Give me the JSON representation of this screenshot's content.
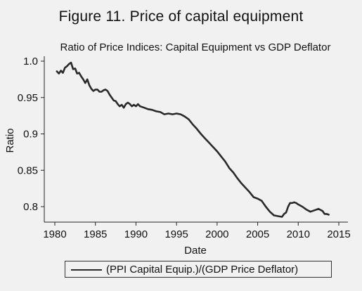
{
  "figure_title": "Figure 11.  Price of capital equipment",
  "chart_data": {
    "type": "line",
    "title": "Ratio of Price Indices: Capital Equipment vs GDP Deflator",
    "xlabel": "Date",
    "ylabel": "Ratio",
    "xlim": [
      1980,
      2015
    ],
    "ylim": [
      0.78,
      1.0
    ],
    "xticks": [
      1980,
      1985,
      1990,
      1995,
      2000,
      2005,
      2010,
      2015
    ],
    "xtick_labels": [
      "1980",
      "1985",
      "1990",
      "1995",
      "2000",
      "2005",
      "2010",
      "2015"
    ],
    "yticks": [
      0.8,
      0.85,
      0.9,
      0.95,
      1.0
    ],
    "ytick_labels": [
      "0.8",
      "0.85",
      "0.9",
      "0.95",
      "1.0"
    ],
    "grid": false,
    "legend_position": "bottom",
    "line_color": "#2a2a2a",
    "series": [
      {
        "name": "(PPI Capital Equip.)/(GDP Price Deflator)",
        "x": [
          1980.25,
          1980.5,
          1980.75,
          1981.0,
          1981.25,
          1981.5,
          1981.75,
          1982.0,
          1982.25,
          1982.5,
          1982.75,
          1983.0,
          1983.25,
          1983.5,
          1983.75,
          1984.0,
          1984.25,
          1984.5,
          1984.75,
          1985.0,
          1985.25,
          1985.5,
          1985.75,
          1986.0,
          1986.25,
          1986.5,
          1986.75,
          1987.0,
          1987.25,
          1987.5,
          1987.75,
          1988.0,
          1988.25,
          1988.5,
          1988.75,
          1989.0,
          1989.25,
          1989.5,
          1989.75,
          1990.0,
          1990.25,
          1990.5,
          1990.75,
          1991.0,
          1991.5,
          1992.0,
          1992.5,
          1993.0,
          1993.5,
          1994.0,
          1994.5,
          1995.0,
          1995.5,
          1996.0,
          1996.5,
          1997.0,
          1997.5,
          1998.0,
          1998.5,
          1999.0,
          1999.5,
          2000.0,
          2000.5,
          2001.0,
          2001.5,
          2002.0,
          2002.5,
          2003.0,
          2003.5,
          2004.0,
          2004.5,
          2005.0,
          2005.5,
          2006.0,
          2006.5,
          2007.0,
          2007.5,
          2008.0,
          2008.25,
          2008.5,
          2008.75,
          2009.0,
          2009.25,
          2009.5,
          2009.75,
          2010.0,
          2010.5,
          2011.0,
          2011.5,
          2012.0,
          2012.5,
          2013.0,
          2013.25,
          2013.5,
          2013.75
        ],
        "y": [
          0.986,
          0.983,
          0.987,
          0.984,
          0.991,
          0.993,
          0.996,
          0.998,
          0.989,
          0.99,
          0.983,
          0.984,
          0.979,
          0.975,
          0.97,
          0.975,
          0.967,
          0.962,
          0.959,
          0.961,
          0.961,
          0.958,
          0.958,
          0.96,
          0.961,
          0.959,
          0.954,
          0.95,
          0.946,
          0.945,
          0.941,
          0.938,
          0.94,
          0.936,
          0.941,
          0.943,
          0.941,
          0.938,
          0.94,
          0.938,
          0.941,
          0.938,
          0.937,
          0.936,
          0.934,
          0.933,
          0.931,
          0.93,
          0.927,
          0.928,
          0.927,
          0.928,
          0.927,
          0.924,
          0.92,
          0.913,
          0.907,
          0.9,
          0.894,
          0.888,
          0.882,
          0.876,
          0.869,
          0.862,
          0.853,
          0.847,
          0.839,
          0.832,
          0.826,
          0.82,
          0.813,
          0.811,
          0.808,
          0.8,
          0.793,
          0.788,
          0.787,
          0.786,
          0.79,
          0.792,
          0.8,
          0.805,
          0.805,
          0.806,
          0.805,
          0.803,
          0.8,
          0.796,
          0.793,
          0.795,
          0.797,
          0.794,
          0.79,
          0.79,
          0.789
        ]
      }
    ]
  }
}
